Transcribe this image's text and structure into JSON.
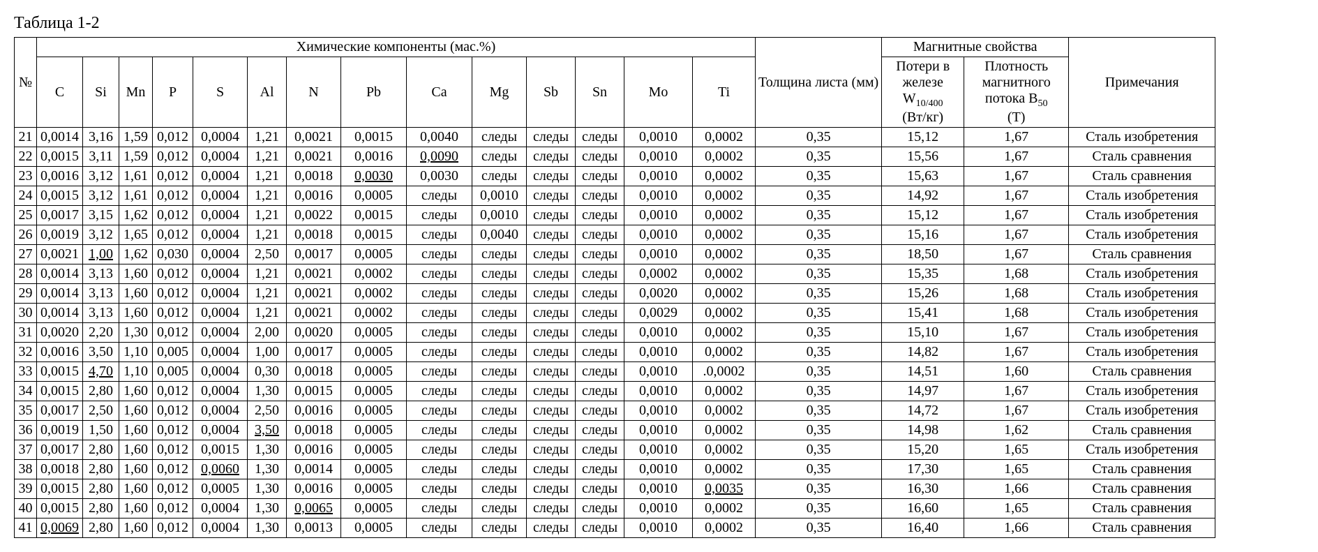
{
  "title": "Таблица 1-2",
  "headers": {
    "no": "№",
    "chem_group": "Химические компоненты (мас.%)",
    "C": "C",
    "Si": "Si",
    "Mn": "Mn",
    "P": "P",
    "S": "S",
    "Al": "Al",
    "N": "N",
    "Pb": "Pb",
    "Ca": "Ca",
    "Mg": "Mg",
    "Sb": "Sb",
    "Sn": "Sn",
    "Mo": "Mo",
    "Ti": "Ti",
    "thickness": "Толщина листа (мм)",
    "magnetic_group": "Магнитные свойства",
    "W_pref": "Потери в железе W",
    "W_sub": "10/400",
    "W_unit": " (Вт/кг)",
    "B_pref": "Плотность магнитного потока B",
    "B_sub": "50",
    "B_unit": " (Т)",
    "notes": "Примечания"
  },
  "rows": [
    {
      "no": "21",
      "C": "0,0014",
      "Si": "3,16",
      "Mn": "1,59",
      "P": "0,012",
      "S": "0,0004",
      "Al": "1,21",
      "N": "0,0021",
      "Pb": "0,0015",
      "Ca": "0,0040",
      "Mg": "следы",
      "Sb": "следы",
      "Sn": "следы",
      "Mo": "0,0010",
      "Ti": "0,0002",
      "th": "0,35",
      "W": "15,12",
      "B": "1,67",
      "note": "Сталь изобретения"
    },
    {
      "no": "22",
      "C": "0,0015",
      "Si": "3,11",
      "Mn": "1,59",
      "P": "0,012",
      "S": "0,0004",
      "Al": "1,21",
      "N": "0,0021",
      "Pb": "0,0016",
      "Ca": "0,0090",
      "Ca_u": true,
      "Mg": "следы",
      "Sb": "следы",
      "Sn": "следы",
      "Mo": "0,0010",
      "Ti": "0,0002",
      "th": "0,35",
      "W": "15,56",
      "B": "1,67",
      "note": "Сталь сравнения"
    },
    {
      "no": "23",
      "C": "0,0016",
      "Si": "3,12",
      "Mn": "1,61",
      "P": "0,012",
      "S": "0,0004",
      "Al": "1,21",
      "N": "0,0018",
      "Pb": "0,0030",
      "Pb_u": true,
      "Ca": "0,0030",
      "Mg": "следы",
      "Sb": "следы",
      "Sn": "следы",
      "Mo": "0,0010",
      "Ti": "0,0002",
      "th": "0,35",
      "W": "15,63",
      "B": "1,67",
      "note": "Сталь сравнения"
    },
    {
      "no": "24",
      "C": "0,0015",
      "Si": "3,12",
      "Mn": "1,61",
      "P": "0,012",
      "S": "0,0004",
      "Al": "1,21",
      "N": "0,0016",
      "Pb": "0,0005",
      "Ca": "следы",
      "Mg": "0,0010",
      "Sb": "следы",
      "Sn": "следы",
      "Mo": "0,0010",
      "Ti": "0,0002",
      "th": "0,35",
      "W": "14,92",
      "B": "1,67",
      "note": "Сталь изобретения"
    },
    {
      "no": "25",
      "C": "0,0017",
      "Si": "3,15",
      "Mn": "1,62",
      "P": "0,012",
      "S": "0,0004",
      "Al": "1,21",
      "N": "0,0022",
      "Pb": "0,0015",
      "Ca": "следы",
      "Mg": "0,0010",
      "Sb": "следы",
      "Sn": "следы",
      "Mo": "0,0010",
      "Ti": "0,0002",
      "th": "0,35",
      "W": "15,12",
      "B": "1,67",
      "note": "Сталь изобретения"
    },
    {
      "no": "26",
      "C": "0,0019",
      "Si": "3,12",
      "Mn": "1,65",
      "P": "0,012",
      "S": "0,0004",
      "Al": "1,21",
      "N": "0,0018",
      "Pb": "0,0015",
      "Ca": "следы",
      "Mg": "0,0040",
      "Sb": "следы",
      "Sn": "следы",
      "Mo": "0,0010",
      "Ti": "0,0002",
      "th": "0,35",
      "W": "15,16",
      "B": "1,67",
      "note": "Сталь изобретения"
    },
    {
      "no": "27",
      "C": "0,0021",
      "Si": "1,00",
      "Si_u": true,
      "Mn": "1,62",
      "P": "0,030",
      "S": "0,0004",
      "Al": "2,50",
      "N": "0,0017",
      "Pb": "0,0005",
      "Ca": "следы",
      "Mg": "следы",
      "Sb": "следы",
      "Sn": "следы",
      "Mo": "0,0010",
      "Ti": "0,0002",
      "th": "0,35",
      "W": "18,50",
      "B": "1,67",
      "note": "Сталь сравнения"
    },
    {
      "no": "28",
      "C": "0,0014",
      "Si": "3,13",
      "Mn": "1,60",
      "P": "0,012",
      "S": "0,0004",
      "Al": "1,21",
      "N": "0,0021",
      "Pb": "0,0002",
      "Ca": "следы",
      "Mg": "следы",
      "Sb": "следы",
      "Sn": "следы",
      "Mo": "0,0002",
      "Ti": "0,0002",
      "th": "0,35",
      "W": "15,35",
      "B": "1,68",
      "note": "Сталь изобретения"
    },
    {
      "no": "29",
      "C": "0,0014",
      "Si": "3,13",
      "Mn": "1,60",
      "P": "0,012",
      "S": "0,0004",
      "Al": "1,21",
      "N": "0,0021",
      "Pb": "0,0002",
      "Ca": "следы",
      "Mg": "следы",
      "Sb": "следы",
      "Sn": "следы",
      "Mo": "0,0020",
      "Ti": "0,0002",
      "th": "0,35",
      "W": "15,26",
      "B": "1,68",
      "note": "Сталь изобретения"
    },
    {
      "no": "30",
      "C": "0,0014",
      "Si": "3,13",
      "Mn": "1,60",
      "P": "0,012",
      "S": "0,0004",
      "Al": "1,21",
      "N": "0,0021",
      "Pb": "0,0002",
      "Ca": "следы",
      "Mg": "следы",
      "Sb": "следы",
      "Sn": "следы",
      "Mo": "0,0029",
      "Ti": "0,0002",
      "th": "0,35",
      "W": "15,41",
      "B": "1,68",
      "note": "Сталь изобретения"
    },
    {
      "no": "31",
      "C": "0,0020",
      "Si": "2,20",
      "Mn": "1,30",
      "P": "0,012",
      "S": "0,0004",
      "Al": "2,00",
      "N": "0,0020",
      "Pb": "0,0005",
      "Ca": "следы",
      "Mg": "следы",
      "Sb": "следы",
      "Sn": "следы",
      "Mo": "0,0010",
      "Ti": "0,0002",
      "th": "0,35",
      "W": "15,10",
      "B": "1,67",
      "note": "Сталь изобретения"
    },
    {
      "no": "32",
      "C": "0,0016",
      "Si": "3,50",
      "Mn": "1,10",
      "P": "0,005",
      "S": "0,0004",
      "Al": "1,00",
      "N": "0,0017",
      "Pb": "0,0005",
      "Ca": "следы",
      "Mg": "следы",
      "Sb": "следы",
      "Sn": "следы",
      "Mo": "0,0010",
      "Ti": "0,0002",
      "th": "0,35",
      "W": "14,82",
      "B": "1,67",
      "note": "Сталь изобретения"
    },
    {
      "no": "33",
      "C": "0,0015",
      "Si": "4,70",
      "Si_u": true,
      "Mn": "1,10",
      "P": "0,005",
      "S": "0,0004",
      "Al": "0,30",
      "N": "0,0018",
      "Pb": "0,0005",
      "Ca": "следы",
      "Mg": "следы",
      "Sb": "следы",
      "Sn": "следы",
      "Mo": "0,0010",
      "Ti": ".0,0002",
      "th": "0,35",
      "W": "14,51",
      "B": "1,60",
      "note": "Сталь сравнения"
    },
    {
      "no": "34",
      "C": "0,0015",
      "Si": "2,80",
      "Mn": "1,60",
      "P": "0,012",
      "S": "0,0004",
      "Al": "1,30",
      "N": "0,0015",
      "Pb": "0,0005",
      "Ca": "следы",
      "Mg": "следы",
      "Sb": "следы",
      "Sn": "следы",
      "Mo": "0,0010",
      "Ti": "0,0002",
      "th": "0,35",
      "W": "14,97",
      "B": "1,67",
      "note": "Сталь изобретения"
    },
    {
      "no": "35",
      "C": "0,0017",
      "Si": "2,50",
      "Mn": "1,60",
      "P": "0,012",
      "S": "0,0004",
      "Al": "2,50",
      "N": "0,0016",
      "Pb": "0,0005",
      "Ca": "следы",
      "Mg": "следы",
      "Sb": "следы",
      "Sn": "следы",
      "Mo": "0,0010",
      "Ti": "0,0002",
      "th": "0,35",
      "W": "14,72",
      "B": "1,67",
      "note": "Сталь изобретения"
    },
    {
      "no": "36",
      "C": "0,0019",
      "Si": "1,50",
      "Mn": "1,60",
      "P": "0,012",
      "S": "0,0004",
      "Al": "3,50",
      "Al_u": true,
      "N": "0,0018",
      "Pb": "0,0005",
      "Ca": "следы",
      "Mg": "следы",
      "Sb": "следы",
      "Sn": "следы",
      "Mo": "0,0010",
      "Ti": "0,0002",
      "th": "0,35",
      "W": "14,98",
      "B": "1,62",
      "note": "Сталь сравнения"
    },
    {
      "no": "37",
      "C": "0,0017",
      "Si": "2,80",
      "Mn": "1,60",
      "P": "0,012",
      "S": "0,0015",
      "Al": "1,30",
      "N": "0,0016",
      "Pb": "0,0005",
      "Ca": "следы",
      "Mg": "следы",
      "Sb": "следы",
      "Sn": "следы",
      "Mo": "0,0010",
      "Ti": "0,0002",
      "th": "0,35",
      "W": "15,20",
      "B": "1,65",
      "note": "Сталь изобретения"
    },
    {
      "no": "38",
      "C": "0,0018",
      "Si": "2,80",
      "Mn": "1,60",
      "P": "0,012",
      "S": "0,0060",
      "S_u": true,
      "Al": "1,30",
      "N": "0,0014",
      "Pb": "0,0005",
      "Ca": "следы",
      "Mg": "следы",
      "Sb": "следы",
      "Sn": "следы",
      "Mo": "0,0010",
      "Ti": "0,0002",
      "th": "0,35",
      "W": "17,30",
      "B": "1,65",
      "note": "Сталь сравнения"
    },
    {
      "no": "39",
      "C": "0,0015",
      "Si": "2,80",
      "Mn": "1,60",
      "P": "0,012",
      "S": "0,0005",
      "Al": "1,30",
      "N": "0,0016",
      "Pb": "0,0005",
      "Ca": "следы",
      "Mg": "следы",
      "Sb": "следы",
      "Sn": "следы",
      "Mo": "0,0010",
      "Ti": "0,0035",
      "Ti_u": true,
      "th": "0,35",
      "W": "16,30",
      "B": "1,66",
      "note": "Сталь сравнения"
    },
    {
      "no": "40",
      "C": "0,0015",
      "Si": "2,80",
      "Mn": "1,60",
      "P": "0,012",
      "S": "0,0004",
      "Al": "1,30",
      "N": "0,0065",
      "N_u": true,
      "Pb": "0,0005",
      "Ca": "следы",
      "Mg": "следы",
      "Sb": "следы",
      "Sn": "следы",
      "Mo": "0,0010",
      "Ti": "0,0002",
      "th": "0,35",
      "W": "16,60",
      "B": "1,65",
      "note": "Сталь сравнения"
    },
    {
      "no": "41",
      "C": "0,0069",
      "C_u": true,
      "Si": "2,80",
      "Mn": "1,60",
      "P": "0,012",
      "S": "0,0004",
      "Al": "1,30",
      "N": "0,0013",
      "Pb": "0,0005",
      "Ca": "следы",
      "Mg": "следы",
      "Sb": "следы",
      "Sn": "следы",
      "Mo": "0,0010",
      "Ti": "0,0002",
      "th": "0,35",
      "W": "16,40",
      "B": "1,66",
      "note": "Сталь сравнения"
    }
  ]
}
